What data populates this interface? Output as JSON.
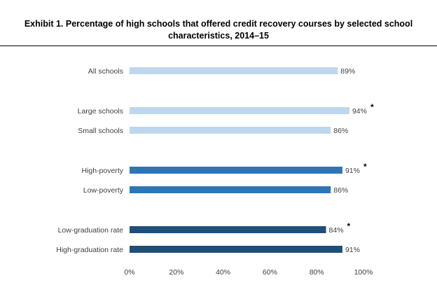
{
  "chart_data": {
    "type": "bar",
    "orientation": "horizontal",
    "title_lines": [
      "Exhibit 1. Percentage of high schools that offered credit recovery courses by selected school",
      "characteristics, 2014–15"
    ],
    "categories": [
      "All schools",
      "Large schools",
      "Small schools",
      "High-poverty",
      "Low-poverty",
      "Low-graduation rate",
      "High-graduation rate"
    ],
    "values": [
      89,
      94,
      86,
      91,
      86,
      84,
      91
    ],
    "data_labels": [
      "89%",
      "94%",
      "86%",
      "91%",
      "86%",
      "84%",
      "91%"
    ],
    "significance_marks": [
      "",
      "*",
      "",
      "*",
      "",
      "*",
      ""
    ],
    "groups": [
      0,
      1,
      1,
      2,
      2,
      3,
      3
    ],
    "xlim": [
      0,
      100
    ],
    "xticks": [
      0,
      20,
      40,
      60,
      80,
      100
    ],
    "xtick_labels": [
      "0%",
      "20%",
      "40%",
      "60%",
      "80%",
      "100%"
    ],
    "grid": false,
    "colors": [
      "#bdd7ee",
      "#bdd7ee",
      "#bdd7ee",
      "#2e75b6",
      "#2e75b6",
      "#1f4e79",
      "#1f4e79"
    ]
  }
}
